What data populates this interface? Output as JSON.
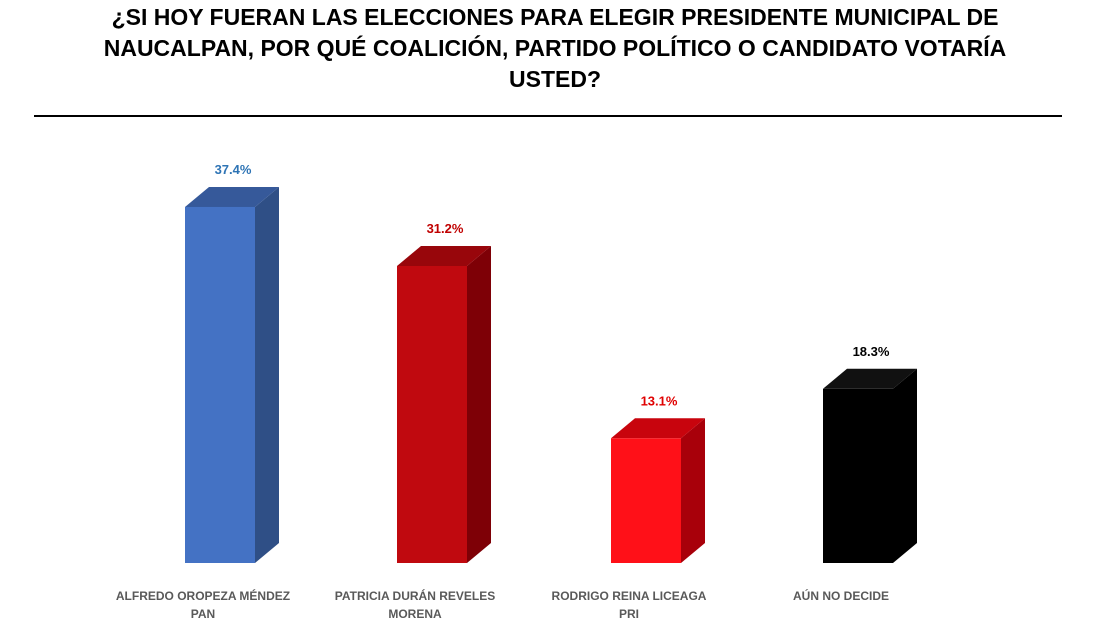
{
  "chart_data": {
    "type": "bar",
    "title": "¿SI HOY FUERAN LAS ELECCIONES PARA ELEGIR PRESIDENTE MUNICIPAL DE NAUCALPAN, POR QUÉ COALICIÓN, PARTIDO POLÍTICO O CANDIDATO VOTARÍA USTED?",
    "categories": [
      [
        "ALFREDO OROPEZA MÉNDEZ",
        "PAN"
      ],
      [
        "PATRICIA DURÁN REVELES",
        "MORENA"
      ],
      [
        "RODRIGO REINA LICEAGA",
        "PRI"
      ],
      [
        "AÚN NO DECIDE"
      ]
    ],
    "values": [
      37.4,
      31.2,
      13.1,
      18.3
    ],
    "value_labels": [
      "37.4%",
      "31.2%",
      "13.1%",
      "18.3%"
    ],
    "bar_colors": [
      {
        "front": "#4472c4",
        "side": "#2f4f86",
        "top": "#36599a"
      },
      {
        "front": "#c0090f",
        "side": "#7e0006",
        "top": "#98060b"
      },
      {
        "front": "#ff1018",
        "side": "#a8000a",
        "top": "#c8040d"
      },
      {
        "front": "#000000",
        "side": "#000000",
        "top": "#111111"
      }
    ],
    "value_label_colors": [
      "#2e74b5",
      "#c00000",
      "#e00000",
      "#000000"
    ],
    "ylim": [
      0,
      40
    ],
    "grid": false,
    "legend": "none",
    "style": "3d-column"
  }
}
